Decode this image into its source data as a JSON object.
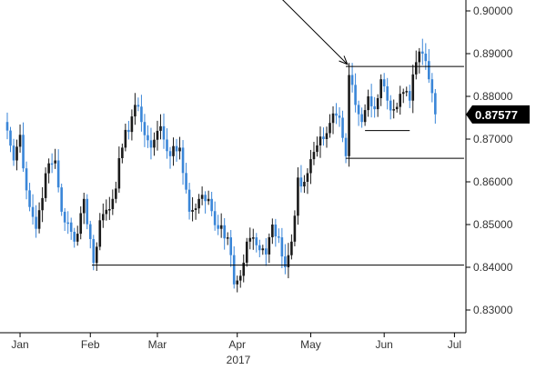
{
  "chart_data": {
    "type": "candlestick",
    "title": "",
    "xlabel": "2017",
    "ylabel": "",
    "ylim": [
      0.8265,
      0.9035
    ],
    "y_ticks": [
      {
        "value": 0.83,
        "label": "0.83000"
      },
      {
        "value": 0.84,
        "label": "0.84000"
      },
      {
        "value": 0.85,
        "label": "0.85000"
      },
      {
        "value": 0.86,
        "label": "0.86000"
      },
      {
        "value": 0.87,
        "label": "0.87000"
      },
      {
        "value": 0.88,
        "label": "0.88000"
      },
      {
        "value": 0.89,
        "label": "0.89000"
      },
      {
        "value": 0.9,
        "label": "0.90000"
      }
    ],
    "x_ticks": [
      {
        "index": 4,
        "label": "Jan"
      },
      {
        "index": 26,
        "label": "Feb"
      },
      {
        "index": 47,
        "label": "Mar"
      },
      {
        "index": 72,
        "label": "Apr"
      },
      {
        "index": 95,
        "label": "May"
      },
      {
        "index": 118,
        "label": "Jun"
      },
      {
        "index": 140,
        "label": "Jul"
      }
    ],
    "x_range": [
      0,
      143
    ],
    "last_price": {
      "value": 0.87577,
      "label": "0.87577"
    },
    "colors": {
      "up": "#1a1a1a",
      "down": "#3a86d8",
      "grid": "#000000",
      "tag_bg": "#000000",
      "tag_fg": "#ffffff"
    },
    "close_anchors": [
      [
        0,
        0.872
      ],
      [
        2,
        0.865
      ],
      [
        4,
        0.871
      ],
      [
        6,
        0.858
      ],
      [
        9,
        0.849
      ],
      [
        12,
        0.862
      ],
      [
        15,
        0.865
      ],
      [
        17,
        0.853
      ],
      [
        21,
        0.846
      ],
      [
        24,
        0.856
      ],
      [
        27,
        0.841
      ],
      [
        29,
        0.851
      ],
      [
        33,
        0.856
      ],
      [
        36,
        0.868
      ],
      [
        40,
        0.878
      ],
      [
        42,
        0.874
      ],
      [
        45,
        0.868
      ],
      [
        48,
        0.873
      ],
      [
        51,
        0.866
      ],
      [
        54,
        0.868
      ],
      [
        57,
        0.853
      ],
      [
        60,
        0.856
      ],
      [
        63,
        0.856
      ],
      [
        66,
        0.849
      ],
      [
        69,
        0.847
      ],
      [
        71,
        0.836
      ],
      [
        73,
        0.838
      ],
      [
        75,
        0.846
      ],
      [
        77,
        0.847
      ],
      [
        79,
        0.844
      ],
      [
        81,
        0.843
      ],
      [
        83,
        0.85
      ],
      [
        85,
        0.847
      ],
      [
        87,
        0.84
      ],
      [
        89,
        0.846
      ],
      [
        91,
        0.861
      ],
      [
        93,
        0.86
      ],
      [
        96,
        0.867
      ],
      [
        99,
        0.87
      ],
      [
        102,
        0.876
      ],
      [
        104,
        0.875
      ],
      [
        106,
        0.866
      ],
      [
        107,
        0.885
      ],
      [
        109,
        0.878
      ],
      [
        111,
        0.874
      ],
      [
        113,
        0.88
      ],
      [
        115,
        0.877
      ],
      [
        117,
        0.884
      ],
      [
        119,
        0.879
      ],
      [
        121,
        0.877
      ],
      [
        124,
        0.881
      ],
      [
        126,
        0.879
      ],
      [
        128,
        0.888
      ],
      [
        130,
        0.89
      ],
      [
        132,
        0.884
      ],
      [
        134,
        0.8758
      ]
    ],
    "annotations": {
      "support_lines": [
        {
          "y": 0.8405,
          "x_from": 26.5,
          "x_to": 143
        },
        {
          "y": 0.8655,
          "x_from": 106,
          "x_to": 143
        },
        {
          "y": 0.887,
          "x_from": 106,
          "x_to": 143
        },
        {
          "y": 0.872,
          "x_from": 112,
          "x_to": 126
        }
      ],
      "arrow": {
        "from": [
          85,
          0.9035
        ],
        "to": [
          106.5,
          0.8875
        ]
      }
    }
  }
}
